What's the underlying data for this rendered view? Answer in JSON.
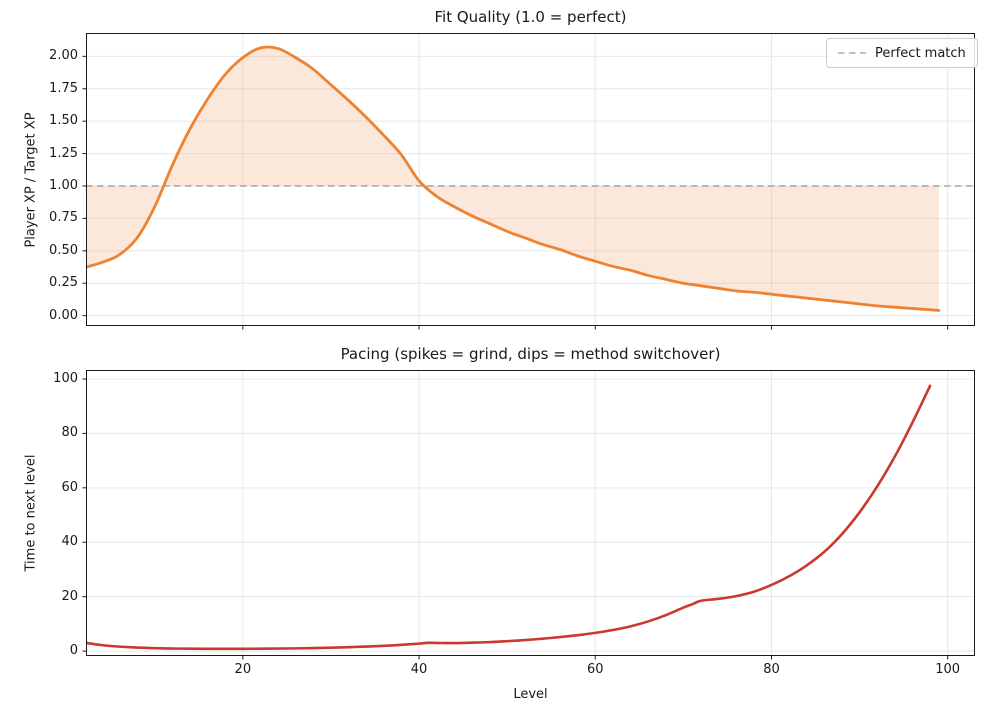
{
  "chart_data": [
    {
      "type": "line",
      "title": "Fit Quality (1.0 = perfect)",
      "xlabel": "",
      "ylabel": "Player XP / Target XP",
      "xlim": [
        2.2,
        103.1
      ],
      "ylim": [
        -0.08,
        2.18
      ],
      "grid": true,
      "xticks": [
        20,
        40,
        60,
        80,
        100
      ],
      "xtick_labels": [
        "20",
        "40",
        "60",
        "80",
        "100"
      ],
      "xtick_labels_visible": false,
      "yticks": [
        0.0,
        0.25,
        0.5,
        0.75,
        1.0,
        1.25,
        1.5,
        1.75,
        2.0
      ],
      "ytick_labels": [
        "0.00",
        "0.25",
        "0.50",
        "0.75",
        "1.00",
        "1.25",
        "1.50",
        "1.75",
        "2.00"
      ],
      "legend": {
        "position": "upper right",
        "label": "Perfect match"
      },
      "reference_line": {
        "y": 1.0,
        "color": "#ababab",
        "style": "dashed"
      },
      "series": [
        {
          "name": "player-xp-over-target-xp",
          "color": "#ee8230",
          "line_width": 2.8,
          "fill_to": 1.0,
          "fill_opacity": 0.18,
          "x": [
            2,
            4,
            6,
            8,
            10,
            12,
            14,
            16,
            18,
            20,
            22,
            24,
            26,
            28,
            30,
            32,
            34,
            36,
            38,
            40,
            42,
            44,
            46,
            48,
            50,
            52,
            54,
            56,
            58,
            60,
            62,
            64,
            66,
            68,
            70,
            72,
            74,
            76,
            78,
            80,
            82,
            84,
            86,
            88,
            90,
            92,
            94,
            96,
            98,
            99
          ],
          "y": [
            0.37,
            0.41,
            0.47,
            0.6,
            0.84,
            1.16,
            1.44,
            1.67,
            1.86,
            1.99,
            2.065,
            2.06,
            1.99,
            1.9,
            1.78,
            1.66,
            1.53,
            1.39,
            1.24,
            1.04,
            0.92,
            0.84,
            0.77,
            0.71,
            0.65,
            0.6,
            0.55,
            0.51,
            0.46,
            0.42,
            0.38,
            0.35,
            0.31,
            0.28,
            0.25,
            0.23,
            0.21,
            0.19,
            0.18,
            0.165,
            0.15,
            0.135,
            0.12,
            0.105,
            0.09,
            0.075,
            0.065,
            0.055,
            0.045,
            0.04
          ]
        }
      ]
    },
    {
      "type": "line",
      "title": "Pacing (spikes = grind, dips = method switchover)",
      "xlabel": "Level",
      "ylabel": "Time to next level",
      "xlim": [
        2.2,
        103.1
      ],
      "ylim": [
        -1.8,
        103.3
      ],
      "grid": true,
      "xticks": [
        20,
        40,
        60,
        80,
        100
      ],
      "xtick_labels": [
        "20",
        "40",
        "60",
        "80",
        "100"
      ],
      "xtick_labels_visible": true,
      "yticks": [
        0,
        20,
        40,
        60,
        80,
        100
      ],
      "ytick_labels": [
        "0",
        "20",
        "40",
        "60",
        "80",
        "100"
      ],
      "series": [
        {
          "name": "time-to-next-level",
          "color": "#c9392f",
          "line_width": 2.6,
          "x": [
            2,
            4,
            6,
            8,
            10,
            12,
            14,
            16,
            18,
            20,
            22,
            24,
            26,
            28,
            30,
            32,
            34,
            36,
            38,
            40,
            41,
            42,
            44,
            46,
            48,
            50,
            52,
            54,
            56,
            58,
            60,
            62,
            64,
            66,
            68,
            70,
            71,
            72,
            74,
            76,
            78,
            80,
            82,
            84,
            86,
            88,
            90,
            92,
            94,
            96,
            98
          ],
          "y": [
            3.1,
            2.2,
            1.65,
            1.3,
            1.08,
            0.95,
            0.88,
            0.85,
            0.84,
            0.85,
            0.88,
            0.93,
            1.0,
            1.1,
            1.25,
            1.45,
            1.68,
            1.95,
            2.3,
            2.75,
            3.05,
            3.0,
            2.95,
            3.1,
            3.3,
            3.65,
            4.05,
            4.55,
            5.15,
            5.85,
            6.7,
            7.75,
            9.1,
            10.9,
            13.2,
            16.0,
            17.2,
            18.5,
            19.2,
            20.2,
            21.8,
            24.3,
            27.5,
            31.5,
            36.5,
            43.0,
            51.0,
            60.5,
            71.5,
            84.0,
            97.5
          ]
        }
      ]
    }
  ]
}
